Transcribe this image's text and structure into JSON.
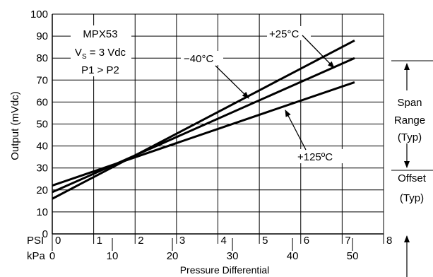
{
  "chart_data": {
    "type": "line",
    "title": "",
    "xlabel": "Pressure Differential",
    "ylabel": "Output (mVdc)",
    "x_unit_labels": [
      "PSI",
      "kPa"
    ],
    "xlim_psi": [
      0,
      8
    ],
    "ylim": [
      0,
      100
    ],
    "grid": true,
    "psi_ticks": [
      "0",
      "1",
      "2",
      "3",
      "4",
      "5",
      "6",
      "7",
      "8"
    ],
    "kpa_ticks": [
      "0",
      "10",
      "20",
      "30",
      "40",
      "50"
    ],
    "y_ticks": [
      "0",
      "10",
      "20",
      "30",
      "40",
      "50",
      "60",
      "70",
      "80",
      "90",
      "100"
    ],
    "series": [
      {
        "name": "+25°C",
        "x": [
          0,
          7.3
        ],
        "y": [
          19,
          80
        ]
      },
      {
        "name": "−40°C",
        "x": [
          0,
          7.3
        ],
        "y": [
          16,
          88
        ]
      },
      {
        "name": "+125ºC",
        "x": [
          0,
          7.3
        ],
        "y": [
          22,
          69
        ]
      }
    ],
    "info_box": [
      "MPX53",
      "V_S = 3 Vdc",
      "P1 > P2"
    ],
    "vs_main": "V",
    "vs_sub": "S",
    "vs_rest": " = 3 Vdc",
    "right_annotations": {
      "span": [
        "Span",
        "Range",
        "(Typ)"
      ],
      "offset": [
        "Offset",
        "(Typ)"
      ]
    }
  }
}
